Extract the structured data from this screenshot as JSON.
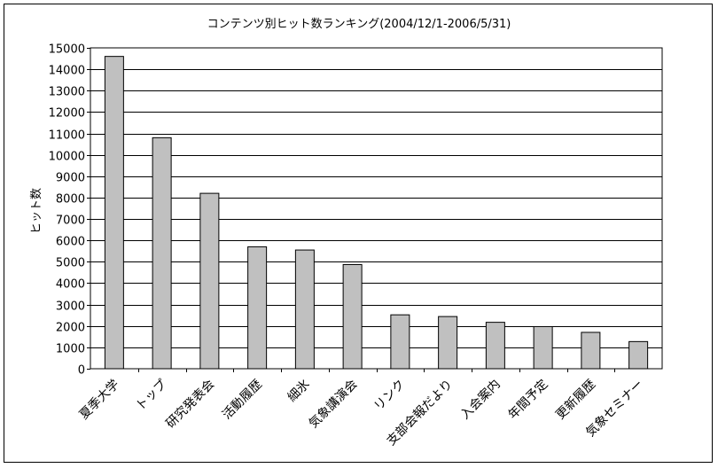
{
  "chart_data": {
    "type": "bar",
    "title": "コンテンツ別ヒット数ランキング(2004/12/1-2006/5/31)",
    "xlabel": "",
    "ylabel": "ヒット数",
    "ylim": [
      0,
      15000
    ],
    "ytick_step": 1000,
    "grid": true,
    "legend": "none",
    "bar_color": "#c0c0c0",
    "categories": [
      "夏季大学",
      "トップ",
      "研究発表会",
      "活動履歴",
      "細氷",
      "気象講演会",
      "リンク",
      "支部会報だより",
      "入会案内",
      "年間予定",
      "更新履歴",
      "気象セミナー"
    ],
    "values": [
      14600,
      10800,
      8200,
      5700,
      5550,
      4870,
      2520,
      2440,
      2170,
      1970,
      1700,
      1270
    ]
  }
}
